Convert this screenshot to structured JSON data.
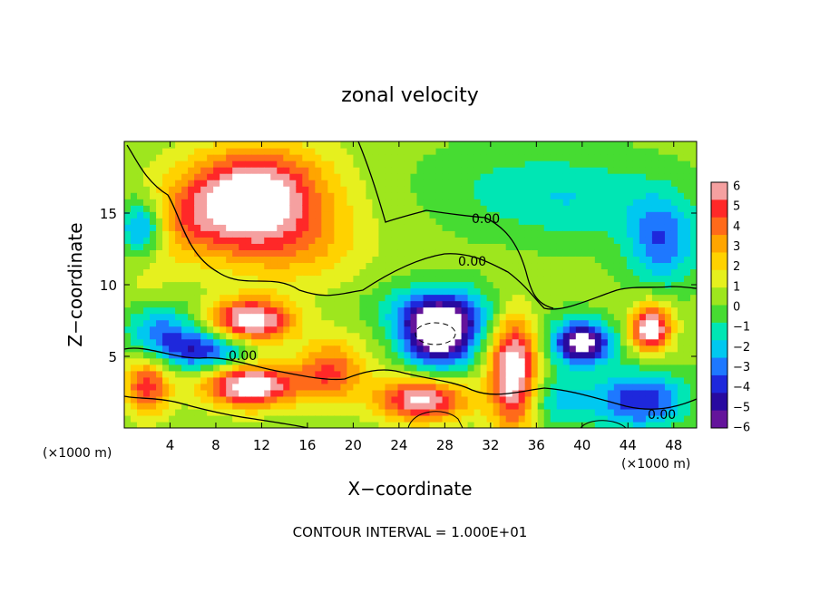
{
  "chart_data": {
    "type": "heatmap",
    "title": "zonal velocity",
    "xlabel": "X−coordinate",
    "ylabel": "Z−coordinate",
    "x_unit_left": "(×1000 m)",
    "x_unit_right": "(×1000 m)",
    "footer": "CONTOUR INTERVAL = 1.000E+01",
    "xlim": [
      0,
      50
    ],
    "ylim": [
      0,
      20
    ],
    "x_ticks": [
      "4",
      "8",
      "12",
      "16",
      "20",
      "24",
      "28",
      "32",
      "36",
      "40",
      "44",
      "48"
    ],
    "y_ticks": [
      "5",
      "10",
      "15"
    ],
    "colorbar": {
      "range": [
        -6,
        6
      ],
      "labels": [
        "6",
        "5",
        "4",
        "3",
        "2",
        "1",
        "0",
        "−1",
        "−2",
        "−3",
        "−4",
        "−5",
        "−6"
      ],
      "colors": [
        "#f5a0a0",
        "#ff2828",
        "#ff6a1a",
        "#ffa500",
        "#ffd200",
        "#e6f01e",
        "#9ee61e",
        "#46dc32",
        "#00e6b4",
        "#00c8f0",
        "#1e78ff",
        "#1e28dc",
        "#280aa0",
        "#64149b"
      ],
      "overflow_color": "#ffffff"
    },
    "contour_labels": [
      "0.00",
      "0.00",
      "0.00",
      "0.00"
    ],
    "regions": [
      {
        "x": 12,
        "z": 17,
        "v": 4.5,
        "rx": 6,
        "rz": 3
      },
      {
        "x": 10,
        "z": 15,
        "v": 3.5,
        "rx": 5,
        "rz": 3
      },
      {
        "x": 15,
        "z": 13,
        "v": 2.5,
        "rx": 6,
        "rz": 3
      },
      {
        "x": 5,
        "z": 14.5,
        "v": 2,
        "rx": 4,
        "rz": 3
      },
      {
        "x": 1.5,
        "z": 14,
        "v": -4,
        "rx": 2,
        "rz": 2
      },
      {
        "x": 47,
        "z": 13,
        "v": -3.5,
        "rx": 3,
        "rz": 3
      },
      {
        "x": 40,
        "z": 16,
        "v": -1.8,
        "rx": 8,
        "rz": 3
      },
      {
        "x": 32,
        "z": 17,
        "v": -0.8,
        "rx": 7,
        "rz": 3
      },
      {
        "x": 2,
        "z": 10,
        "v": 0.8,
        "rx": 3,
        "rz": 3
      },
      {
        "x": 27.5,
        "z": 6.5,
        "v": -7,
        "rx": 3,
        "rz": 2.3
      },
      {
        "x": 27.5,
        "z": 8,
        "v": -3,
        "rx": 6,
        "rz": 2
      },
      {
        "x": 11,
        "z": 7.5,
        "v": 7,
        "rx": 3.5,
        "rz": 1.5
      },
      {
        "x": 11,
        "z": 3,
        "v": 7,
        "rx": 4,
        "rz": 1.5
      },
      {
        "x": 7,
        "z": 5.5,
        "v": -4.5,
        "rx": 4,
        "rz": 1.5
      },
      {
        "x": 26,
        "z": 2,
        "v": 6,
        "rx": 4,
        "rz": 1.5
      },
      {
        "x": 34,
        "z": 4,
        "v": 7,
        "rx": 2,
        "rz": 4
      },
      {
        "x": 40,
        "z": 6,
        "v": -7,
        "rx": 2.5,
        "rz": 1.5
      },
      {
        "x": 46,
        "z": 7,
        "v": 7,
        "rx": 1.7,
        "rz": 1.6
      },
      {
        "x": 45,
        "z": 2,
        "v": -4.5,
        "rx": 4,
        "rz": 2
      },
      {
        "x": 38,
        "z": 2,
        "v": -2,
        "rx": 3,
        "rz": 2
      },
      {
        "x": 2,
        "z": 3,
        "v": 4.5,
        "rx": 2,
        "rz": 2
      },
      {
        "x": 18,
        "z": 4,
        "v": 4,
        "rx": 3,
        "rz": 2
      },
      {
        "x": 3,
        "z": 7,
        "v": -3,
        "rx": 3,
        "rz": 2
      },
      {
        "x": 20,
        "z": 7,
        "v": 0.5,
        "rx": 4,
        "rz": 2
      }
    ]
  }
}
